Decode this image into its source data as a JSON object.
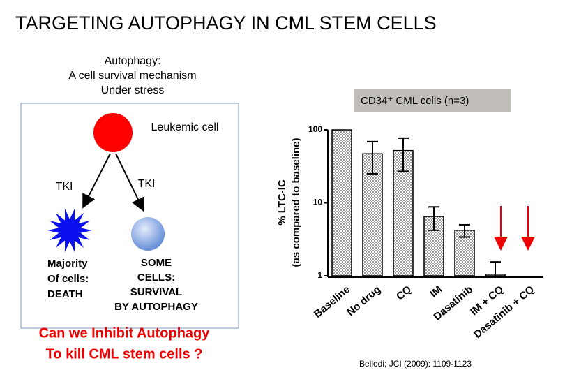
{
  "slide": {
    "title": "TARGETING AUTOPHAGY IN CML STEM CELLS",
    "subtitle_lines": [
      "Autophagy:",
      "A cell survival mechanism",
      "Under stress"
    ],
    "diagram": {
      "top_label": "Leukemic cell",
      "left_arrow_label": "TKI",
      "right_arrow_label": "TKI",
      "left_outcome": [
        "Majority",
        "Of cells:",
        "DEATH"
      ],
      "right_outcome": [
        "SOME",
        "CELLS:",
        "SURVIVAL",
        "BY AUTOPHAGY"
      ]
    },
    "question": [
      "Can we Inhibit Autophagy",
      "To kill CML stem cells ?"
    ],
    "citation": "Bellodi; JCI (2009): 1109-1123"
  },
  "chart_data": {
    "type": "bar",
    "log_scale": true,
    "y_label": [
      "% LTC-IC",
      "(as compared to baseline)"
    ],
    "categories": [
      "Baseline",
      "No drug",
      "CQ",
      "IM",
      "Dasatinib",
      "IM + CQ",
      "Dasatinib + CQ"
    ],
    "series": [
      {
        "name": "CD34⁺ CML cells (n=3)",
        "color": "#9a9a9a",
        "values": [
          100,
          47,
          52,
          6.5,
          4.2,
          1.05,
          1
        ],
        "errors": [
          0,
          22,
          25,
          2.3,
          0.8,
          0.5,
          0
        ]
      }
    ],
    "ylim": [
      1,
      100
    ],
    "yticks": [
      1,
      10,
      100
    ]
  }
}
